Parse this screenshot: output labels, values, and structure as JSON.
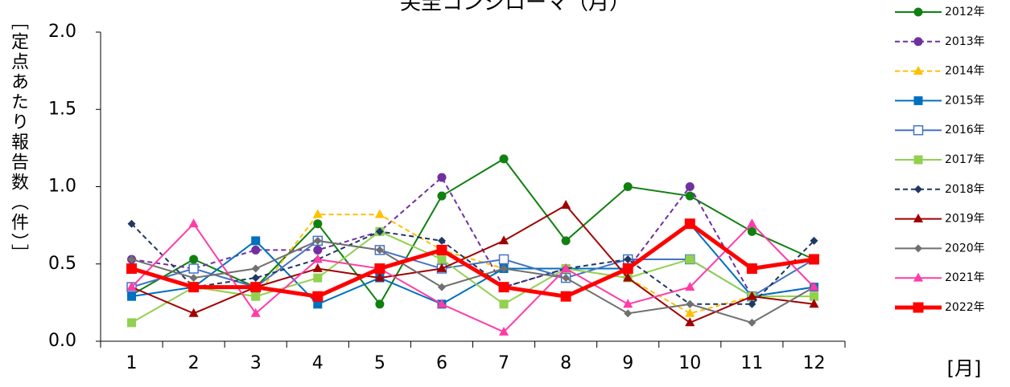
{
  "chart_data": {
    "type": "line",
    "title": "尖圭コンジローマ（月）",
    "y_label": "［定点あたり報告数（件）］",
    "x_label": "[月]",
    "categories": [
      "1",
      "2",
      "3",
      "4",
      "5",
      "6",
      "7",
      "8",
      "9",
      "10",
      "11",
      "12"
    ],
    "ylim": [
      0,
      2
    ],
    "yticks": [
      {
        "value": 0,
        "label": "0.0"
      },
      0.5,
      {
        "value": 1,
        "label": "1.0"
      },
      1.5,
      {
        "value": 2,
        "label": "2.0"
      }
    ],
    "grid": false,
    "legend": "right",
    "series": [
      {
        "name": "2012年",
        "color": "#108010",
        "marker": "circle",
        "dash": "solid",
        "values": [
          0.3,
          0.53,
          0.35,
          0.76,
          0.24,
          0.94,
          1.18,
          0.65,
          1.0,
          0.94,
          0.71,
          0.53
        ]
      },
      {
        "name": "2013年",
        "color": "#7030a0",
        "marker": "circle",
        "dash": "dashed",
        "values": [
          0.53,
          0.47,
          0.59,
          0.59,
          0.71,
          1.06,
          0.35,
          0.47,
          0.47,
          1.0,
          0.29,
          0.35
        ]
      },
      {
        "name": "2014年",
        "color": "#ffc000",
        "marker": "triangle",
        "dash": "dashed",
        "values": [
          0.47,
          0.35,
          0.29,
          0.82,
          0.82,
          0.59,
          0.47,
          0.47,
          0.41,
          0.18,
          0.29,
          0.29
        ]
      },
      {
        "name": "2015年",
        "color": "#0070c0",
        "marker": "square",
        "dash": "solid",
        "values": [
          0.29,
          0.35,
          0.65,
          0.24,
          0.41,
          0.24,
          0.47,
          0.47,
          0.47,
          0.76,
          0.29,
          0.35
        ]
      },
      {
        "name": "2016年",
        "color": "#4472c4",
        "marker": "square-open",
        "dash": "solid",
        "values": [
          0.35,
          0.47,
          0.35,
          0.65,
          0.59,
          0.47,
          0.53,
          0.41,
          0.53,
          0.53,
          0.29,
          0.53
        ]
      },
      {
        "name": "2017年",
        "color": "#92d050",
        "marker": "square",
        "dash": "solid",
        "values": [
          0.12,
          0.35,
          0.29,
          0.41,
          0.71,
          0.53,
          0.24,
          0.47,
          0.41,
          0.53,
          0.29,
          0.29
        ]
      },
      {
        "name": "2018年",
        "color": "#1f3864",
        "marker": "diamond",
        "dash": "dashed",
        "values": [
          0.76,
          0.35,
          0.41,
          0.53,
          0.71,
          0.65,
          0.35,
          0.47,
          0.53,
          0.24,
          0.24,
          0.65
        ]
      },
      {
        "name": "2019年",
        "color": "#a00000",
        "marker": "triangle",
        "dash": "solid",
        "values": [
          0.35,
          0.18,
          0.35,
          0.47,
          0.41,
          0.47,
          0.65,
          0.88,
          0.41,
          0.12,
          0.29,
          0.24
        ]
      },
      {
        "name": "2020年",
        "color": "#707070",
        "marker": "diamond",
        "dash": "solid",
        "values": [
          0.53,
          0.41,
          0.47,
          0.65,
          0.59,
          0.35,
          0.47,
          0.41,
          0.18,
          0.24,
          0.12,
          0.35
        ]
      },
      {
        "name": "2021年",
        "color": "#ff3ca8",
        "marker": "triangle",
        "dash": "solid",
        "values": [
          0.35,
          0.76,
          0.18,
          0.53,
          0.47,
          0.24,
          0.06,
          0.47,
          0.24,
          0.35,
          0.76,
          0.35
        ]
      },
      {
        "name": "2022年",
        "color": "#ff0000",
        "marker": "square",
        "dash": "thick",
        "values": [
          0.47,
          0.35,
          0.35,
          0.29,
          0.47,
          0.59,
          0.35,
          0.29,
          0.47,
          0.76,
          0.47,
          0.53
        ]
      }
    ]
  }
}
